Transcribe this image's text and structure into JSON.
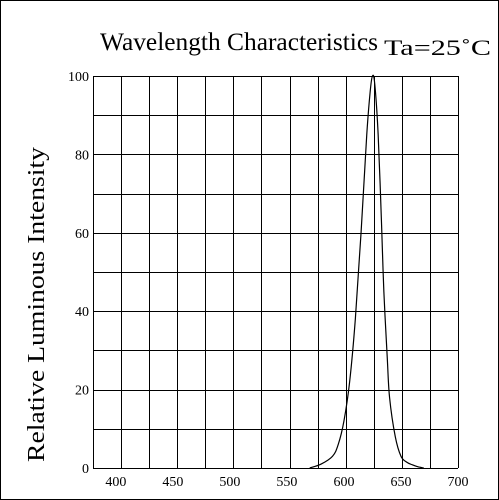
{
  "chart_data": {
    "type": "line",
    "title": "Wavelength Characteristics",
    "condition": "Ta=25˚C",
    "xlabel": "",
    "ylabel": "Relative Luminous Intensity",
    "xlim": [
      380,
      700
    ],
    "ylim": [
      0,
      100
    ],
    "xticks": [
      400,
      450,
      500,
      550,
      600,
      650,
      700
    ],
    "yticks": [
      0,
      20,
      40,
      60,
      80,
      100
    ],
    "grid": true,
    "series": [
      {
        "values": [
          [
            570,
            0
          ],
          [
            580,
            1
          ],
          [
            590,
            3
          ],
          [
            595,
            6
          ],
          [
            600,
            12
          ],
          [
            605,
            22
          ],
          [
            610,
            38
          ],
          [
            615,
            60
          ],
          [
            620,
            85
          ],
          [
            623,
            96
          ],
          [
            625,
            100
          ],
          [
            627,
            98
          ],
          [
            630,
            85
          ],
          [
            633,
            62
          ],
          [
            635,
            45
          ],
          [
            638,
            28
          ],
          [
            640,
            18
          ],
          [
            645,
            8
          ],
          [
            650,
            3
          ],
          [
            655,
            1.5
          ],
          [
            660,
            0.8
          ],
          [
            665,
            0.3
          ],
          [
            670,
            0
          ]
        ]
      }
    ]
  }
}
